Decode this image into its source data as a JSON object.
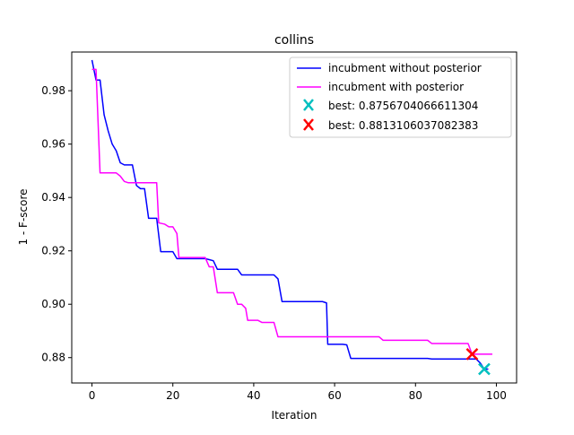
{
  "chart_data": {
    "type": "line",
    "title": "collins",
    "xlabel": "Iteration",
    "ylabel": "1 - F-score",
    "xlim": [
      -5,
      105
    ],
    "ylim": [
      0.8705,
      0.9945
    ],
    "xticks": [
      0,
      20,
      40,
      60,
      80,
      100
    ],
    "yticks": [
      0.88,
      0.9,
      0.92,
      0.94,
      0.96,
      0.98
    ],
    "xtick_labels": [
      "0",
      "20",
      "40",
      "60",
      "80",
      "100"
    ],
    "ytick_labels": [
      "0.88",
      "0.90",
      "0.92",
      "0.94",
      "0.96",
      "0.98"
    ],
    "grid": false,
    "legend_position": "top-right",
    "series": [
      {
        "name": "incubment without posterior",
        "color": "#0000ff",
        "style": "line",
        "points": [
          [
            0,
            0.9915
          ],
          [
            1,
            0.984
          ],
          [
            2,
            0.984
          ],
          [
            3,
            0.971
          ],
          [
            4,
            0.965
          ],
          [
            5,
            0.96
          ],
          [
            6,
            0.9575
          ],
          [
            7,
            0.953
          ],
          [
            8,
            0.9522
          ],
          [
            10,
            0.9522
          ],
          [
            11,
            0.9445
          ],
          [
            12,
            0.9433
          ],
          [
            13,
            0.9433
          ],
          [
            14,
            0.9322
          ],
          [
            16,
            0.9322
          ],
          [
            17,
            0.9197
          ],
          [
            20,
            0.9197
          ],
          [
            21,
            0.9171
          ],
          [
            28,
            0.9171
          ],
          [
            29,
            0.9167
          ],
          [
            30,
            0.9163
          ],
          [
            31,
            0.9131
          ],
          [
            36,
            0.9131
          ],
          [
            37,
            0.911
          ],
          [
            45,
            0.911
          ],
          [
            46,
            0.9095
          ],
          [
            47,
            0.901
          ],
          [
            57,
            0.901
          ],
          [
            58,
            0.9005
          ],
          [
            58.3,
            0.885
          ],
          [
            62,
            0.885
          ],
          [
            63,
            0.8848
          ],
          [
            64,
            0.8797
          ],
          [
            83,
            0.8797
          ],
          [
            84,
            0.8795
          ],
          [
            95,
            0.8795
          ],
          [
            96,
            0.878
          ],
          [
            97,
            0.8757
          ],
          [
            98,
            0.8757
          ]
        ]
      },
      {
        "name": "incubment with posterior",
        "color": "#ff00ff",
        "style": "line",
        "points": [
          [
            0,
            0.988
          ],
          [
            1,
            0.988
          ],
          [
            2,
            0.9492
          ],
          [
            6,
            0.9492
          ],
          [
            7,
            0.948
          ],
          [
            8,
            0.946
          ],
          [
            9,
            0.9455
          ],
          [
            16,
            0.9455
          ],
          [
            16.5,
            0.9305
          ],
          [
            18,
            0.93
          ],
          [
            19,
            0.929
          ],
          [
            20,
            0.929
          ],
          [
            21,
            0.9265
          ],
          [
            21.5,
            0.9175
          ],
          [
            28,
            0.9175
          ],
          [
            29,
            0.914
          ],
          [
            30,
            0.914
          ],
          [
            31,
            0.9043
          ],
          [
            35,
            0.9043
          ],
          [
            36,
            0.9
          ],
          [
            37,
            0.9
          ],
          [
            38,
            0.8985
          ],
          [
            38.5,
            0.894
          ],
          [
            41,
            0.894
          ],
          [
            42,
            0.8932
          ],
          [
            45,
            0.8932
          ],
          [
            46,
            0.8878
          ],
          [
            71,
            0.8878
          ],
          [
            72,
            0.8865
          ],
          [
            82,
            0.8865
          ],
          [
            83,
            0.8865
          ],
          [
            84,
            0.8853
          ],
          [
            93,
            0.8853
          ],
          [
            94,
            0.8813
          ],
          [
            99,
            0.8813
          ]
        ]
      },
      {
        "name": "best: 0.8756704066611304",
        "color": "#00bfbf",
        "style": "x-marker",
        "points": [
          [
            97,
            0.8757
          ]
        ]
      },
      {
        "name": "best: 0.8813106037082383",
        "color": "#ff0000",
        "style": "x-marker",
        "points": [
          [
            94,
            0.8813
          ]
        ]
      }
    ]
  }
}
